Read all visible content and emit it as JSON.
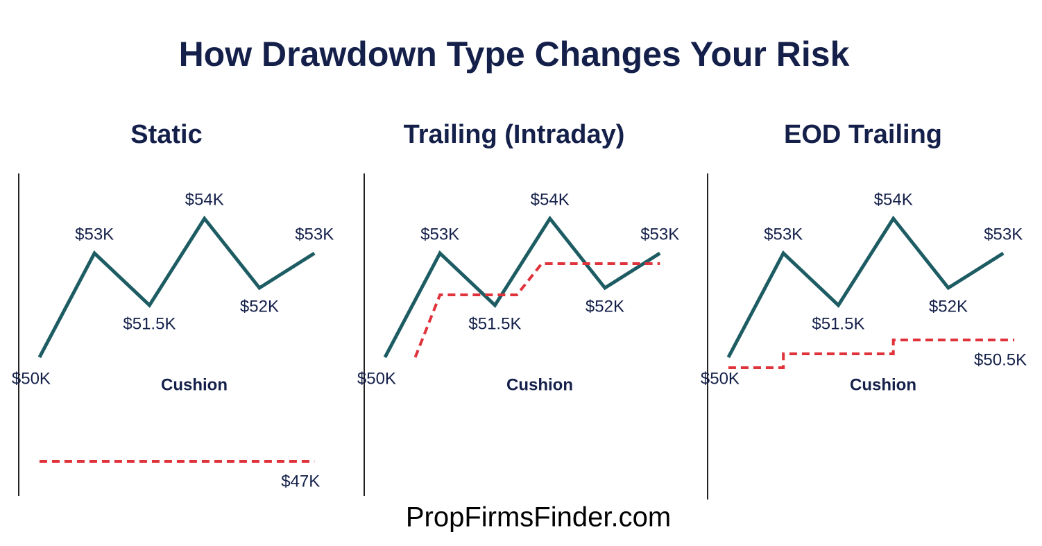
{
  "title": "How Drawdown Type Changes Your Risk",
  "footer": "PropFirmsFinder.com",
  "chart_data": [
    {
      "type": "line",
      "title": "Static",
      "annotation": "Cushion",
      "xlim": [
        -0.1,
        5.3
      ],
      "ylim": [
        46.5,
        54.5
      ],
      "series": [
        {
          "color": "#1d5c63",
          "x": [
            0,
            1,
            2,
            3,
            4,
            5
          ],
          "values": [
            50,
            53,
            51.5,
            54,
            52,
            53
          ],
          "value_labels": [
            "$50K",
            "$53K",
            "$51.5K",
            "$54K",
            "$52K",
            "$53K"
          ]
        },
        {
          "color": "#e0323a",
          "dashed": true,
          "x": [
            0,
            5
          ],
          "values": [
            47,
            47
          ],
          "value_labels": [
            null,
            "$47K"
          ]
        }
      ]
    },
    {
      "type": "line",
      "title": "Trailing (Intraday)",
      "annotation": "Cushion",
      "xlim": [
        -0.1,
        5.3
      ],
      "ylim": [
        46.5,
        54.5
      ],
      "series": [
        {
          "color": "#1d5c63",
          "x": [
            0,
            1,
            2,
            3,
            4,
            5
          ],
          "values": [
            50,
            53,
            51.5,
            54,
            52,
            53
          ],
          "value_labels": [
            "$50K",
            "$53K",
            "$51.5K",
            "$54K",
            "$52K",
            "$53K"
          ]
        },
        {
          "color": "#e0323a",
          "dashed": true,
          "x": [
            0.55,
            1.0,
            2.4,
            2.85,
            5.0
          ],
          "values": [
            50,
            51.8,
            51.8,
            52.7,
            52.7
          ]
        }
      ]
    },
    {
      "type": "line",
      "title": "EOD Trailing",
      "annotation": "Cushion",
      "xlim": [
        -0.1,
        5.3
      ],
      "ylim": [
        46.5,
        54.5
      ],
      "series": [
        {
          "color": "#1d5c63",
          "x": [
            0,
            1,
            2,
            3,
            4,
            5
          ],
          "values": [
            50,
            53,
            51.5,
            54,
            52,
            53
          ],
          "value_labels": [
            "$50K",
            "$53K",
            "$51.5K",
            "$54K",
            "$52K",
            "$53K"
          ]
        },
        {
          "color": "#e0323a",
          "dashed": true,
          "x": [
            0,
            1,
            1,
            3,
            3,
            5.2
          ],
          "values": [
            49.7,
            49.7,
            50.1,
            50.1,
            50.5,
            50.5
          ],
          "value_labels": [
            null,
            null,
            null,
            null,
            null,
            "$50.5K"
          ]
        }
      ]
    }
  ]
}
